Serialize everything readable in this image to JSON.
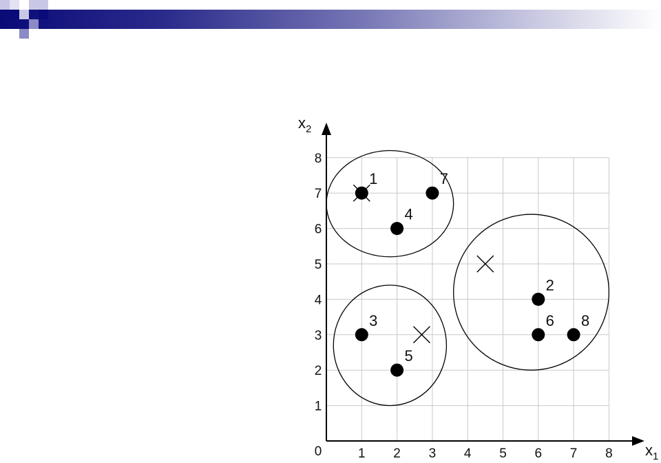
{
  "colors": {
    "header_dark": "#0a0a78",
    "header_light": "#c6c6e0",
    "logo_dark": "#0a0a78",
    "logo_mid": "#8a8ac6",
    "logo_light": "#c8c8e6"
  },
  "chart_data": {
    "type": "scatter",
    "xlabel": "x",
    "xlabel_sub": "1",
    "ylabel": "x",
    "ylabel_sub": "2",
    "origin_label": "0",
    "xticks": [
      1,
      2,
      3,
      4,
      5,
      6,
      7,
      8
    ],
    "yticks": [
      1,
      2,
      3,
      4,
      5,
      6,
      7,
      8
    ],
    "xlim": [
      0,
      8
    ],
    "ylim": [
      0,
      8
    ],
    "grid": true,
    "points": [
      {
        "label": "1",
        "x": 1,
        "y": 7
      },
      {
        "label": "2",
        "x": 6,
        "y": 4
      },
      {
        "label": "3",
        "x": 1,
        "y": 3
      },
      {
        "label": "4",
        "x": 2,
        "y": 6
      },
      {
        "label": "5",
        "x": 2,
        "y": 2
      },
      {
        "label": "6",
        "x": 6,
        "y": 3
      },
      {
        "label": "7",
        "x": 3,
        "y": 7
      },
      {
        "label": "8",
        "x": 7,
        "y": 3
      }
    ],
    "centroids": [
      {
        "x": 1,
        "y": 7
      },
      {
        "x": 4.5,
        "y": 5
      },
      {
        "x": 2.7,
        "y": 3
      }
    ],
    "clusters": [
      {
        "cx": 1.8,
        "cy": 6.7,
        "rx": 1.8,
        "ry": 1.5,
        "members": [
          "1",
          "4",
          "7"
        ]
      },
      {
        "cx": 1.8,
        "cy": 2.7,
        "rx": 1.6,
        "ry": 1.7,
        "members": [
          "3",
          "5"
        ]
      },
      {
        "cx": 5.8,
        "cy": 4.2,
        "rx": 2.2,
        "ry": 2.2,
        "members": [
          "2",
          "6",
          "8"
        ]
      }
    ]
  }
}
